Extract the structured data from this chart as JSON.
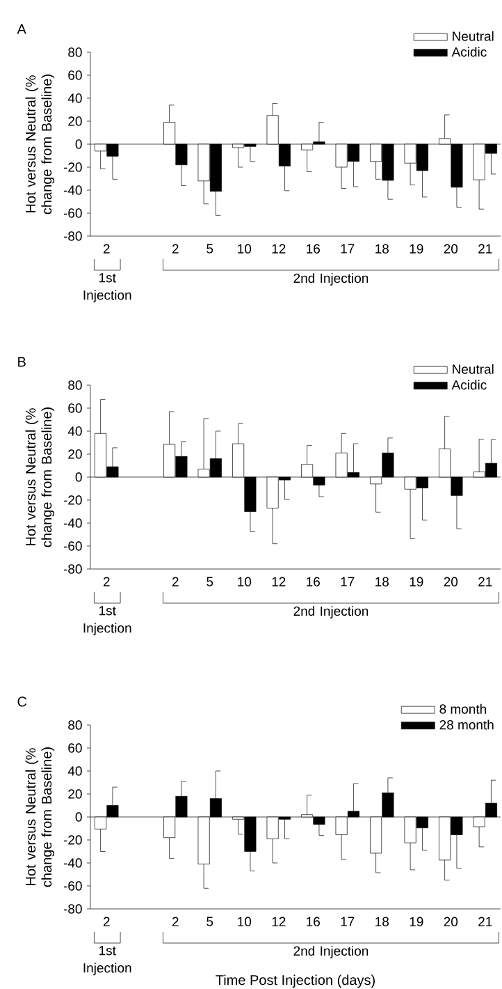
{
  "chart_data": [
    {
      "type": "bar",
      "title": "A",
      "ylabel": "Hot versus Neutral (% change from Baseline)",
      "categories": [
        "2",
        null,
        "2",
        "5",
        "10",
        "12",
        "16",
        "17",
        "18",
        "19",
        "20",
        "21"
      ],
      "ylim": [
        -80,
        80
      ],
      "yticks": [
        -80,
        -60,
        -40,
        -20,
        0,
        20,
        40,
        60,
        80
      ],
      "legend": "top right",
      "annotations": [
        "1st Injection",
        "2nd Injection"
      ],
      "series": [
        {
          "name": "Neutral",
          "color": "#ffffff",
          "values": [
            -6,
            null,
            19,
            -32,
            -3,
            25,
            -5,
            -20,
            -15,
            -16.5,
            5,
            -31
          ],
          "errors": [
            [
              -21.5,
              -6
            ],
            null,
            [
              19,
              34
            ],
            [
              -52,
              -32
            ],
            [
              -20,
              -3
            ],
            [
              25,
              35.5
            ],
            [
              -24,
              -5
            ],
            [
              -38.5,
              -20
            ],
            [
              -30.5,
              -15
            ],
            [
              -35.5,
              -16.5
            ],
            [
              5,
              25.5
            ],
            [
              -56.5,
              -31
            ]
          ]
        },
        {
          "name": "Acidic",
          "color": "#000000",
          "values": [
            -10.5,
            null,
            -18,
            -41,
            -2,
            -19,
            2,
            -15,
            -31.5,
            -23,
            -37.5,
            -8
          ],
          "errors": [
            [
              -30.5,
              -10.5
            ],
            null,
            [
              -36,
              -18
            ],
            [
              -62,
              -41
            ],
            [
              -15,
              -2
            ],
            [
              -40.5,
              -19
            ],
            [
              2,
              19
            ],
            [
              -37,
              -15
            ],
            [
              -48,
              -31.5
            ],
            [
              -46,
              -23
            ],
            [
              -55,
              -37.5
            ],
            [
              -26,
              -8
            ]
          ]
        }
      ]
    },
    {
      "type": "bar",
      "title": "B",
      "ylabel": "Hot versus Neutral (% change from Baseline)",
      "categories": [
        "2",
        null,
        "2",
        "5",
        "10",
        "12",
        "16",
        "17",
        "18",
        "19",
        "20",
        "21"
      ],
      "ylim": [
        -80,
        80
      ],
      "yticks": [
        -80,
        -60,
        -40,
        -20,
        0,
        20,
        40,
        60,
        80
      ],
      "legend": "top right",
      "annotations": [
        "1st Injection",
        "2nd Injection"
      ],
      "series": [
        {
          "name": "Neutral",
          "color": "#ffffff",
          "values": [
            38,
            null,
            28.5,
            7,
            29,
            -27,
            11,
            21,
            -6,
            -10.5,
            24.5,
            4.5
          ],
          "errors": [
            [
              38,
              67.5
            ],
            null,
            [
              28.5,
              57
            ],
            [
              7,
              51
            ],
            [
              29,
              46.5
            ],
            [
              -58,
              -27
            ],
            [
              11,
              27.5
            ],
            [
              21,
              38
            ],
            [
              -30.5,
              -6
            ],
            [
              -53.5,
              -10.5
            ],
            [
              24.5,
              53
            ],
            [
              4.5,
              33
            ]
          ]
        },
        {
          "name": "Acidic",
          "color": "#000000",
          "values": [
            9,
            null,
            18,
            16,
            -30,
            -2.5,
            -7,
            4,
            21,
            -9.5,
            -16,
            12
          ],
          "errors": [
            [
              9,
              25.5
            ],
            null,
            [
              18,
              31
            ],
            [
              16,
              40
            ],
            [
              -47.5,
              -30
            ],
            [
              -19.5,
              -2.5
            ],
            [
              -17,
              -7
            ],
            [
              4,
              29
            ],
            [
              21,
              34
            ],
            [
              -37.5,
              -9.5
            ],
            [
              -45,
              -16
            ],
            [
              12,
              32.5
            ]
          ]
        }
      ]
    },
    {
      "type": "bar",
      "title": "C",
      "ylabel": "Hot versus Neutral (% change from Baseline)",
      "xlabel": "Time Post Injection (days)",
      "categories": [
        "2",
        null,
        "2",
        "5",
        "10",
        "12",
        "16",
        "17",
        "18",
        "19",
        "20",
        "21"
      ],
      "ylim": [
        -80,
        80
      ],
      "yticks": [
        -80,
        -60,
        -40,
        -20,
        0,
        20,
        40,
        60,
        80
      ],
      "legend": "top right",
      "annotations": [
        "1st Injection",
        "2nd Injection"
      ],
      "series": [
        {
          "name": "8 month",
          "color": "#ffffff",
          "values": [
            -10.5,
            null,
            -18,
            -41,
            -2,
            -19,
            2,
            -15.5,
            -31.5,
            -22.5,
            -37.5,
            -8.5
          ],
          "errors": [
            [
              -30,
              -10.5
            ],
            null,
            [
              -36,
              -18
            ],
            [
              -62,
              -41
            ],
            [
              -15,
              -2
            ],
            [
              -40,
              -19
            ],
            [
              2,
              19
            ],
            [
              -37,
              -15.5
            ],
            [
              -48.5,
              -31.5
            ],
            [
              -46,
              -22.5
            ],
            [
              -55,
              -37.5
            ],
            [
              -26,
              -8.5
            ]
          ]
        },
        {
          "name": "28 month",
          "color": "#000000",
          "values": [
            10,
            null,
            18,
            16,
            -30,
            -2,
            -6.5,
            5,
            21,
            -9.5,
            -15.5,
            12
          ],
          "errors": [
            [
              10,
              26
            ],
            null,
            [
              18,
              31
            ],
            [
              16,
              40
            ],
            [
              -47,
              -30
            ],
            [
              -19,
              -2
            ],
            [
              -16,
              -6.5
            ],
            [
              5,
              29
            ],
            [
              21,
              34
            ],
            [
              -29,
              -9.5
            ],
            [
              -44.5,
              -15.5
            ],
            [
              12,
              32
            ]
          ]
        }
      ]
    }
  ]
}
